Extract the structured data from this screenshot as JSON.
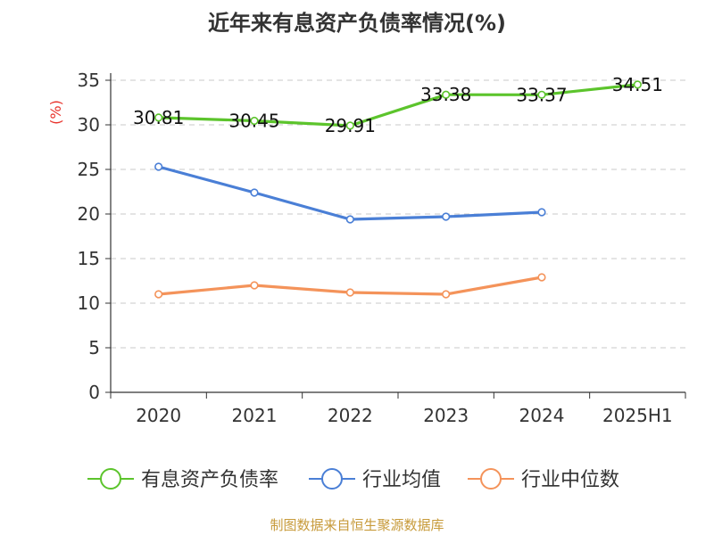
{
  "title": "近年来有息资产负债率情况(%)",
  "source": "制图数据来自恒生聚源数据库",
  "chart_data": {
    "type": "line",
    "title": "近年来有息资产负债率情况(%)",
    "ylabel": "(%)",
    "xlabel": "",
    "categories": [
      "2020",
      "2021",
      "2022",
      "2023",
      "2024",
      "2025H1"
    ],
    "ylim": [
      0,
      35
    ],
    "yticks": [
      0,
      5,
      10,
      15,
      20,
      25,
      30,
      35
    ],
    "grid": "horizontal dashed",
    "legend_position": "bottom",
    "series": [
      {
        "name": "有息资产负债率",
        "color": "#5cc42c",
        "values": [
          30.81,
          30.45,
          29.91,
          33.38,
          33.37,
          34.51
        ],
        "labels": [
          "30.81",
          "30.45",
          "29.91",
          "33.38",
          "33.37",
          "34.51"
        ]
      },
      {
        "name": "行业均值",
        "color": "#4a7fd6",
        "values": [
          25.3,
          22.4,
          19.4,
          19.7,
          20.2,
          null
        ]
      },
      {
        "name": "行业中位数",
        "color": "#f4935a",
        "values": [
          11.0,
          12.0,
          11.2,
          11.0,
          12.9,
          null
        ]
      }
    ]
  }
}
